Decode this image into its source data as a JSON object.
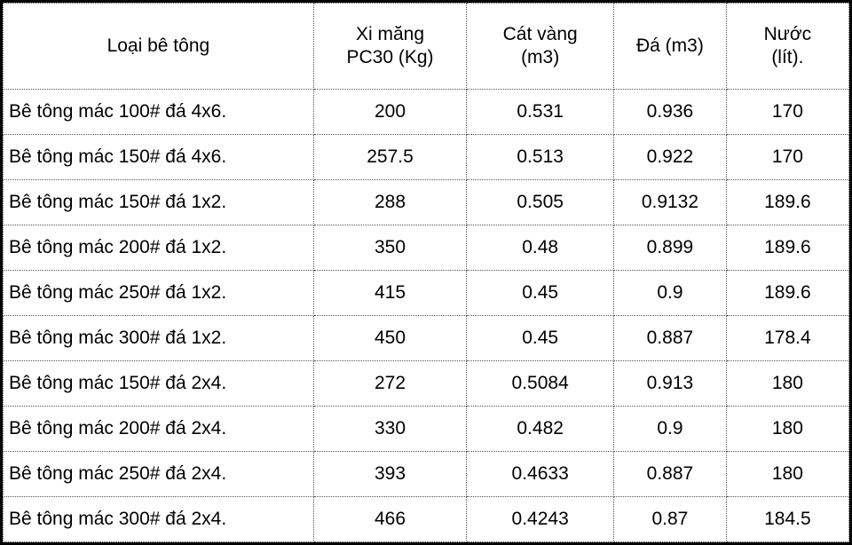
{
  "table": {
    "headers": {
      "type": "Loại bê tông",
      "cement": "Xi măng\nPC30 (Kg)",
      "sand": "Cát vàng\n(m3)",
      "stone": "Đá (m3)",
      "water": "Nước\n(lít)."
    },
    "rows": [
      {
        "type": "Bê tông mác 100# đá 4x6.",
        "cement": "200",
        "sand": "0.531",
        "stone": "0.936",
        "water": "170"
      },
      {
        "type": "Bê tông mác 150# đá 4x6.",
        "cement": "257.5",
        "sand": "0.513",
        "stone": "0.922",
        "water": "170"
      },
      {
        "type": "Bê tông mác 150# đá 1x2.",
        "cement": "288",
        "sand": "0.505",
        "stone": "0.9132",
        "water": "189.6"
      },
      {
        "type": "Bê tông mác 200# đá 1x2.",
        "cement": "350",
        "sand": "0.48",
        "stone": "0.899",
        "water": "189.6"
      },
      {
        "type": "Bê tông mác 250# đá 1x2.",
        "cement": "415",
        "sand": "0.45",
        "stone": "0.9",
        "water": "189.6"
      },
      {
        "type": "Bê tông mác 300# đá 1x2.",
        "cement": "450",
        "sand": "0.45",
        "stone": "0.887",
        "water": "178.4"
      },
      {
        "type": "Bê tông mác 150# đá 2x4.",
        "cement": "272",
        "sand": "0.5084",
        "stone": "0.913",
        "water": "180"
      },
      {
        "type": "Bê tông mác 200# đá 2x4.",
        "cement": "330",
        "sand": "0.482",
        "stone": "0.9",
        "water": "180"
      },
      {
        "type": "Bê tông mác 250# đá 2x4.",
        "cement": "393",
        "sand": "0.4633",
        "stone": "0.887",
        "water": "180"
      },
      {
        "type": "Bê tông mác 300# đá 2x4.",
        "cement": "466",
        "sand": "0.4243",
        "stone": "0.87",
        "water": "184.5"
      }
    ],
    "colors": {
      "outer_border": "#000000",
      "inner_border": "#555555",
      "background": "#ffffff",
      "text": "#000000"
    }
  }
}
